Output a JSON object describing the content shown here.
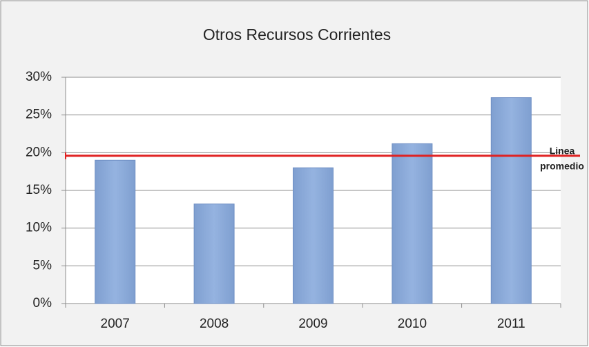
{
  "chart_data": {
    "type": "bar",
    "title": "Otros Recursos Corrientes",
    "categories": [
      "2007",
      "2008",
      "2009",
      "2010",
      "2011"
    ],
    "values": [
      19,
      13.2,
      18,
      21.2,
      27.3
    ],
    "color": "#95b3e0",
    "ylim": [
      0,
      30
    ],
    "yticks": [
      {
        "value": 0,
        "label": "0%"
      },
      {
        "value": 5,
        "label": "5%"
      },
      {
        "value": 10,
        "label": "10%"
      },
      {
        "value": 15,
        "label": "15%"
      },
      {
        "value": 20,
        "label": "20%"
      },
      {
        "value": 25,
        "label": "25%"
      },
      {
        "value": 30,
        "label": "30%"
      }
    ],
    "grid": true,
    "reference_line": {
      "value": 19.6,
      "label": [
        "Linea",
        "promedio"
      ],
      "color": "#e02020"
    }
  }
}
